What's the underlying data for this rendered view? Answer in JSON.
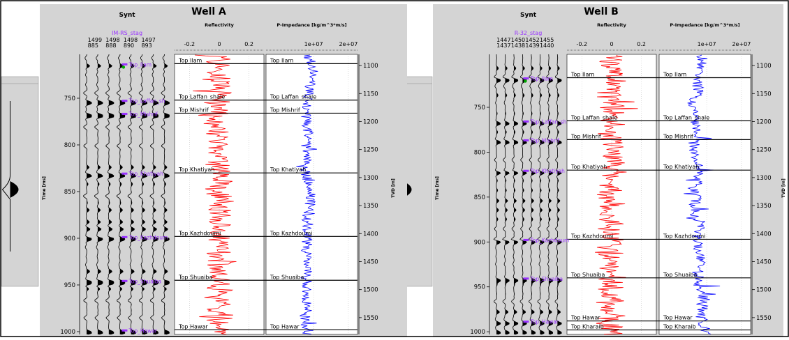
{
  "colors": {
    "panel_bg": "#d4d4d4",
    "track_bg": "#ffffff",
    "reflectivity": "#ff0000",
    "impedance": "#0000ff",
    "horizon_label": "#9933ff",
    "marker": "#00aa00",
    "horizon_line": "#000000"
  },
  "wells": [
    {
      "title": "Well A",
      "synt_title": "Synt",
      "refl_title": "Reflectivity",
      "imp_title": "P-Impedance [kg/m^3*m/s]",
      "time_axis_label": "Time [ms]",
      "tvd_axis_label": "TVD [m]",
      "trace_name": "IM-RS_stag",
      "trace_header_row1": [
        "1499",
        "1498",
        "1498",
        "1497"
      ],
      "trace_header_row2": [
        "885",
        "888",
        "890",
        "893"
      ],
      "time_ticks": [
        750,
        800,
        850,
        900,
        950,
        1000
      ],
      "time_range": [
        703,
        1003
      ],
      "tvd_ticks": [
        1100,
        1150,
        1200,
        1250,
        1300,
        1350,
        1400,
        1450,
        1500,
        1550
      ],
      "tvd_range": [
        1080,
        1580
      ],
      "refl_ticks": [
        "-0.2",
        "0",
        "0.2"
      ],
      "refl_range": [
        -0.3,
        0.3
      ],
      "imp_ticks": [
        "1e+07",
        "2e+07"
      ],
      "horizons": [
        {
          "name": "Top Ilam",
          "synt_label": "Top_Ilam",
          "time": 713
        },
        {
          "name": "Top Laffan_shale",
          "synt_label": "Top_Laffan_sh",
          "time": 752
        },
        {
          "name": "Top Mishrif",
          "synt_label": "Top_Mishrif",
          "time": 766
        },
        {
          "name": "Top Khatiyah",
          "synt_label": "Top_Khatiyah",
          "time": 830
        },
        {
          "name": "Top Kazhdoumi",
          "synt_label": "Top_Kazhdoum",
          "time": 898
        },
        {
          "name": "Top Shuaiba",
          "synt_label": "Top_Shuaiba",
          "time": 945
        },
        {
          "name": "Top Hawar",
          "synt_label": "Top_Hawar",
          "time": 998
        }
      ]
    },
    {
      "title": "Well B",
      "synt_title": "Synt",
      "refl_title": "Reflectivity",
      "imp_title": "P-Impedance [kg/m^3*m/s]",
      "time_axis_label": "Time [ms]",
      "tvd_axis_label": "TVD [m]",
      "trace_name": "R-32_stag",
      "trace_header_row1": [
        "1447",
        "1450",
        "1452",
        "1455"
      ],
      "trace_header_row2": [
        "1437",
        "1438",
        "1439",
        "1440"
      ],
      "time_ticks": [
        750,
        800,
        850,
        900,
        950,
        1000
      ],
      "time_range": [
        691,
        1003
      ],
      "tvd_ticks": [
        1100,
        1150,
        1200,
        1250,
        1300,
        1350,
        1400,
        1450,
        1500,
        1550
      ],
      "tvd_range": [
        1080,
        1580
      ],
      "refl_ticks": [
        "-0.2",
        "0",
        "0.2"
      ],
      "refl_range": [
        -0.3,
        0.3
      ],
      "imp_ticks": [
        "1e+07",
        "2e+07"
      ],
      "horizons": [
        {
          "name": "Top Ilam",
          "synt_label": "Top_Ilam",
          "time": 717
        },
        {
          "name": "Top Laffan_shale",
          "synt_label": "Top_Laffan_sh",
          "time": 765
        },
        {
          "name": "Top Mishrif",
          "synt_label": "Top_Mishrif",
          "time": 786
        },
        {
          "name": "Top Khatiyah",
          "synt_label": "Top_Khatiyah",
          "time": 820
        },
        {
          "name": "Top Kazhdoumi",
          "synt_label": "Top_Kazhdoum",
          "time": 897
        },
        {
          "name": "Top Shuaiba",
          "synt_label": "Top_Shuaiba",
          "time": 940
        },
        {
          "name": "Top Hawar",
          "synt_label": "Top_Hawar",
          "time": 988
        },
        {
          "name": "Top Kharaib",
          "synt_label": "",
          "time": 998
        }
      ]
    }
  ]
}
